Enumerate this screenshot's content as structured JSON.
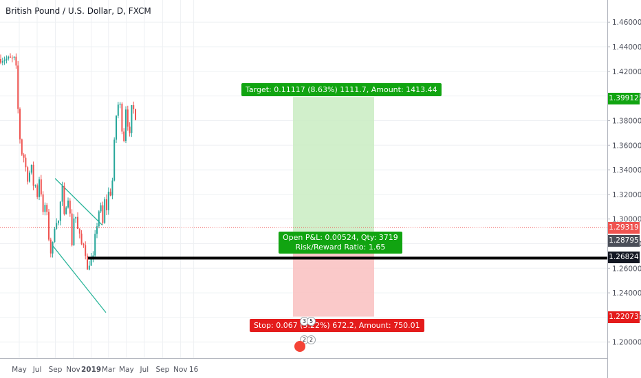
{
  "symbol": {
    "title": "British Pound / U.S. Dollar, D, FXCM"
  },
  "chart_data": {
    "type": "candlestick",
    "y_axis": {
      "ylim": [
        1.187,
        1.478
      ],
      "ticks": [
        "1.20000",
        "1.22000",
        "1.24000",
        "1.26000",
        "1.28000",
        "1.30000",
        "1.32000",
        "1.34000",
        "1.36000",
        "1.38000",
        "1.40000",
        "1.42000",
        "1.44000",
        "1.46000"
      ]
    },
    "x_axis": {
      "labels": [
        "May",
        "Jul",
        "Sep",
        "Nov",
        "2019",
        "Mar",
        "May",
        "Jul",
        "Sep",
        "Nov",
        "16"
      ]
    },
    "price_path": [
      [
        "2018-04-17",
        1.43
      ],
      [
        "2018-04-20",
        1.405
      ],
      [
        "2018-04-27",
        1.38
      ],
      [
        "2018-05-04",
        1.355
      ],
      [
        "2018-05-11",
        1.352
      ],
      [
        "2018-05-18",
        1.348
      ],
      [
        "2018-05-25",
        1.332
      ],
      [
        "2018-06-01",
        1.335
      ],
      [
        "2018-06-08",
        1.345
      ],
      [
        "2018-06-15",
        1.328
      ],
      [
        "2018-06-22",
        1.328
      ],
      [
        "2018-06-29",
        1.319
      ],
      [
        "2018-07-06",
        1.334
      ],
      [
        "2018-07-13",
        1.32
      ],
      [
        "2018-07-20",
        1.3
      ],
      [
        "2018-07-27",
        1.315
      ],
      [
        "2018-08-03",
        1.298
      ],
      [
        "2018-08-10",
        1.277
      ],
      [
        "2018-08-17",
        1.27
      ],
      [
        "2018-08-24",
        1.288
      ],
      [
        "2018-08-31",
        1.303
      ],
      [
        "2018-09-07",
        1.293
      ],
      [
        "2018-09-14",
        1.308
      ],
      [
        "2018-09-21",
        1.33
      ],
      [
        "2018-09-28",
        1.3
      ],
      [
        "2018-10-05",
        1.312
      ],
      [
        "2018-10-12",
        1.318
      ],
      [
        "2018-10-19",
        1.302
      ],
      [
        "2018-10-26",
        1.277
      ],
      [
        "2018-11-02",
        1.307
      ],
      [
        "2018-11-09",
        1.3
      ],
      [
        "2018-11-16",
        1.287
      ],
      [
        "2018-11-23",
        1.285
      ],
      [
        "2018-11-30",
        1.275
      ],
      [
        "2018-12-07",
        1.286
      ],
      [
        "2018-12-14",
        1.255
      ],
      [
        "2018-12-21",
        1.262
      ],
      [
        "2018-12-28",
        1.27
      ],
      [
        "2019-01-03",
        1.262
      ],
      [
        "2019-01-11",
        1.284
      ],
      [
        "2019-01-18",
        1.295
      ],
      [
        "2019-01-25",
        1.307
      ],
      [
        "2019-02-01",
        1.309
      ],
      [
        "2019-02-08",
        1.294
      ],
      [
        "2019-02-15",
        1.32
      ],
      [
        "2019-02-22",
        1.304
      ],
      [
        "2019-03-01",
        1.33
      ],
      [
        "2019-03-08",
        1.315
      ],
      [
        "2019-03-15",
        1.345
      ],
      [
        "2019-03-22",
        1.38
      ],
      [
        "2019-03-29",
        1.39
      ],
      [
        "2019-04-05",
        1.398
      ],
      [
        "2019-04-12",
        1.378
      ],
      [
        "2019-04-19",
        1.36
      ],
      [
        "2019-04-26",
        1.392
      ],
      [
        "2019-05-03",
        1.378
      ],
      [
        "2019-05-10",
        1.367
      ],
      [
        "2019-05-17",
        1.392
      ],
      [
        "2019-05-24",
        1.388
      ],
      [
        "2019-05-31",
        1.382
      ],
      [
        "2019-06-03",
        1.378
      ]
    ],
    "current_price": 1.29319,
    "horizontal_levels": [
      1.26824
    ],
    "position": {
      "entry": 1.28795,
      "target": 1.39912,
      "stop": 1.22073,
      "target_label": "Target: 0.11117 (8.63%) 1111.7, Amount: 1413.44",
      "stop_label": "Stop: 0.067 (5.22%) 672.2, Amount: 750.01",
      "pnl_label": "Open P&L: 0.00524, Qty: 3719",
      "rr_label": "Risk/Reward Ratio: 1.65"
    },
    "price_labels": [
      "1.39912",
      "1.29319",
      "1.28795",
      "1.26824",
      "1.22073"
    ],
    "channel": {
      "upper": [
        [
          "2018-08-31",
          1.333
        ],
        [
          "2019-02-08",
          1.295
        ]
      ],
      "lower": [
        [
          "2018-08-24",
          1.278
        ],
        [
          "2019-02-20",
          1.224
        ]
      ]
    },
    "colors": {
      "up": "#26a69a",
      "down": "#ef5350",
      "target_zone": "#c9ecc2",
      "stop_zone": "#f9c0c0",
      "label_green": "#11a411",
      "label_red": "#e41b1b",
      "label_dark": "#131722",
      "channel": "#2ab59a"
    }
  },
  "events": [
    {
      "badge_a": "3",
      "badge_b": "5"
    },
    {
      "badge_a": "2",
      "badge_b": "2"
    }
  ]
}
